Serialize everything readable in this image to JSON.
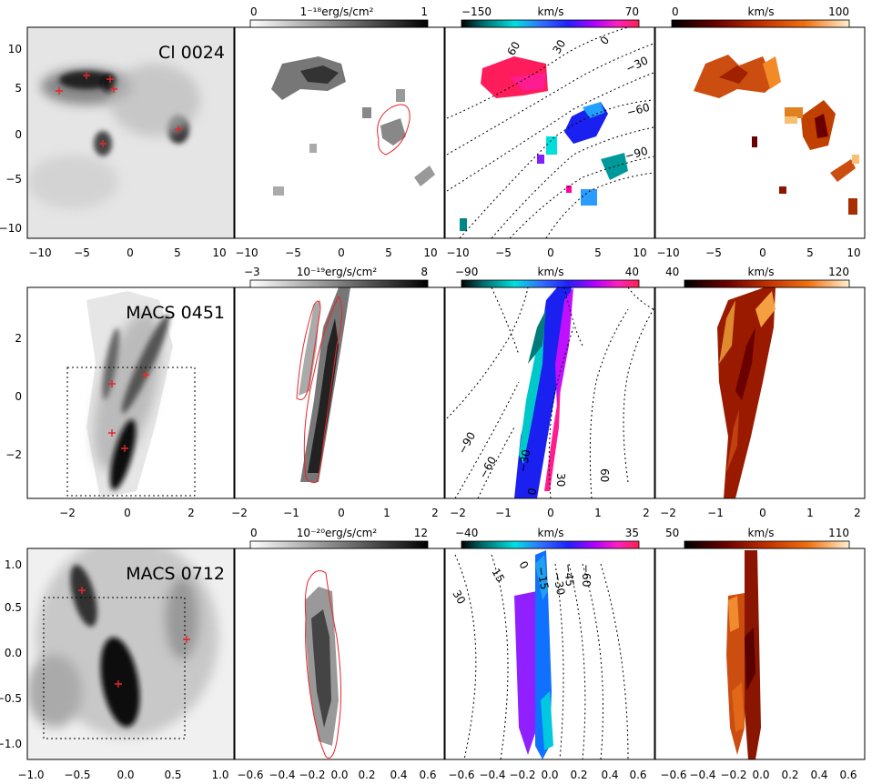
{
  "rows": [
    {
      "name": "Cl 0024",
      "xticks": [
        "−10",
        "−5",
        "0",
        "5",
        "10"
      ],
      "yticks": [
        "10",
        "5",
        "0",
        "−5",
        "−10"
      ],
      "yticks_ext": [
        "10",
        "5",
        "0",
        "−5",
        "−10"
      ],
      "colorbars": [
        {
          "min": "0",
          "max": "1",
          "unit": "1⁻¹⁸erg/s/cm²",
          "cmap": "gray"
        },
        {
          "min": "−150",
          "max": "70",
          "unit": "km/s",
          "cmap": "vel"
        },
        {
          "min": "0",
          "max": "100",
          "unit": "km/s",
          "cmap": "heat"
        }
      ],
      "contour_labels": [
        "60",
        "30",
        "0",
        "−30",
        "−60",
        "−90"
      ],
      "sources_count": 6
    },
    {
      "name": "MACS 0451",
      "xticks": [
        "−2",
        "−1",
        "0",
        "1",
        "2"
      ],
      "yticks": [
        "2",
        "0",
        "−2"
      ],
      "colorbars": [
        {
          "min": "−3",
          "max": "8",
          "unit": "10⁻¹⁹erg/s/cm²",
          "cmap": "gray"
        },
        {
          "min": "−90",
          "max": "40",
          "unit": "km/s",
          "cmap": "vel"
        },
        {
          "min": "40",
          "max": "120",
          "unit": "km/s",
          "cmap": "heat"
        }
      ],
      "contour_labels": [
        "−90",
        "−60",
        "−30",
        "0",
        "30",
        "60"
      ]
    },
    {
      "name": "MACS 0712",
      "xticks_first": [
        "−1.0",
        "−0.5",
        "0.0",
        "0.5",
        "1.0"
      ],
      "xticks": [
        "−0.6",
        "−0.4",
        "−0.2",
        "0.0",
        "0.2",
        "0.4",
        "0.6"
      ],
      "yticks": [
        "1.0",
        "0.5",
        "0.0",
        "−0.5",
        "−1.0"
      ],
      "colorbars": [
        {
          "min": "0",
          "max": "12",
          "unit": "10⁻²⁰erg/s/cm²",
          "cmap": "gray"
        },
        {
          "min": "−40",
          "max": "35",
          "unit": "km/s",
          "cmap": "vel"
        },
        {
          "min": "50",
          "max": "110",
          "unit": "km/s",
          "cmap": "heat"
        }
      ],
      "contour_labels": [
        "30",
        "15",
        "0",
        "−15",
        "−30",
        "−45",
        "−60"
      ]
    }
  ],
  "colors": {
    "marker": "#e8262a",
    "contour": "#e8262a",
    "frame": "#000000"
  }
}
